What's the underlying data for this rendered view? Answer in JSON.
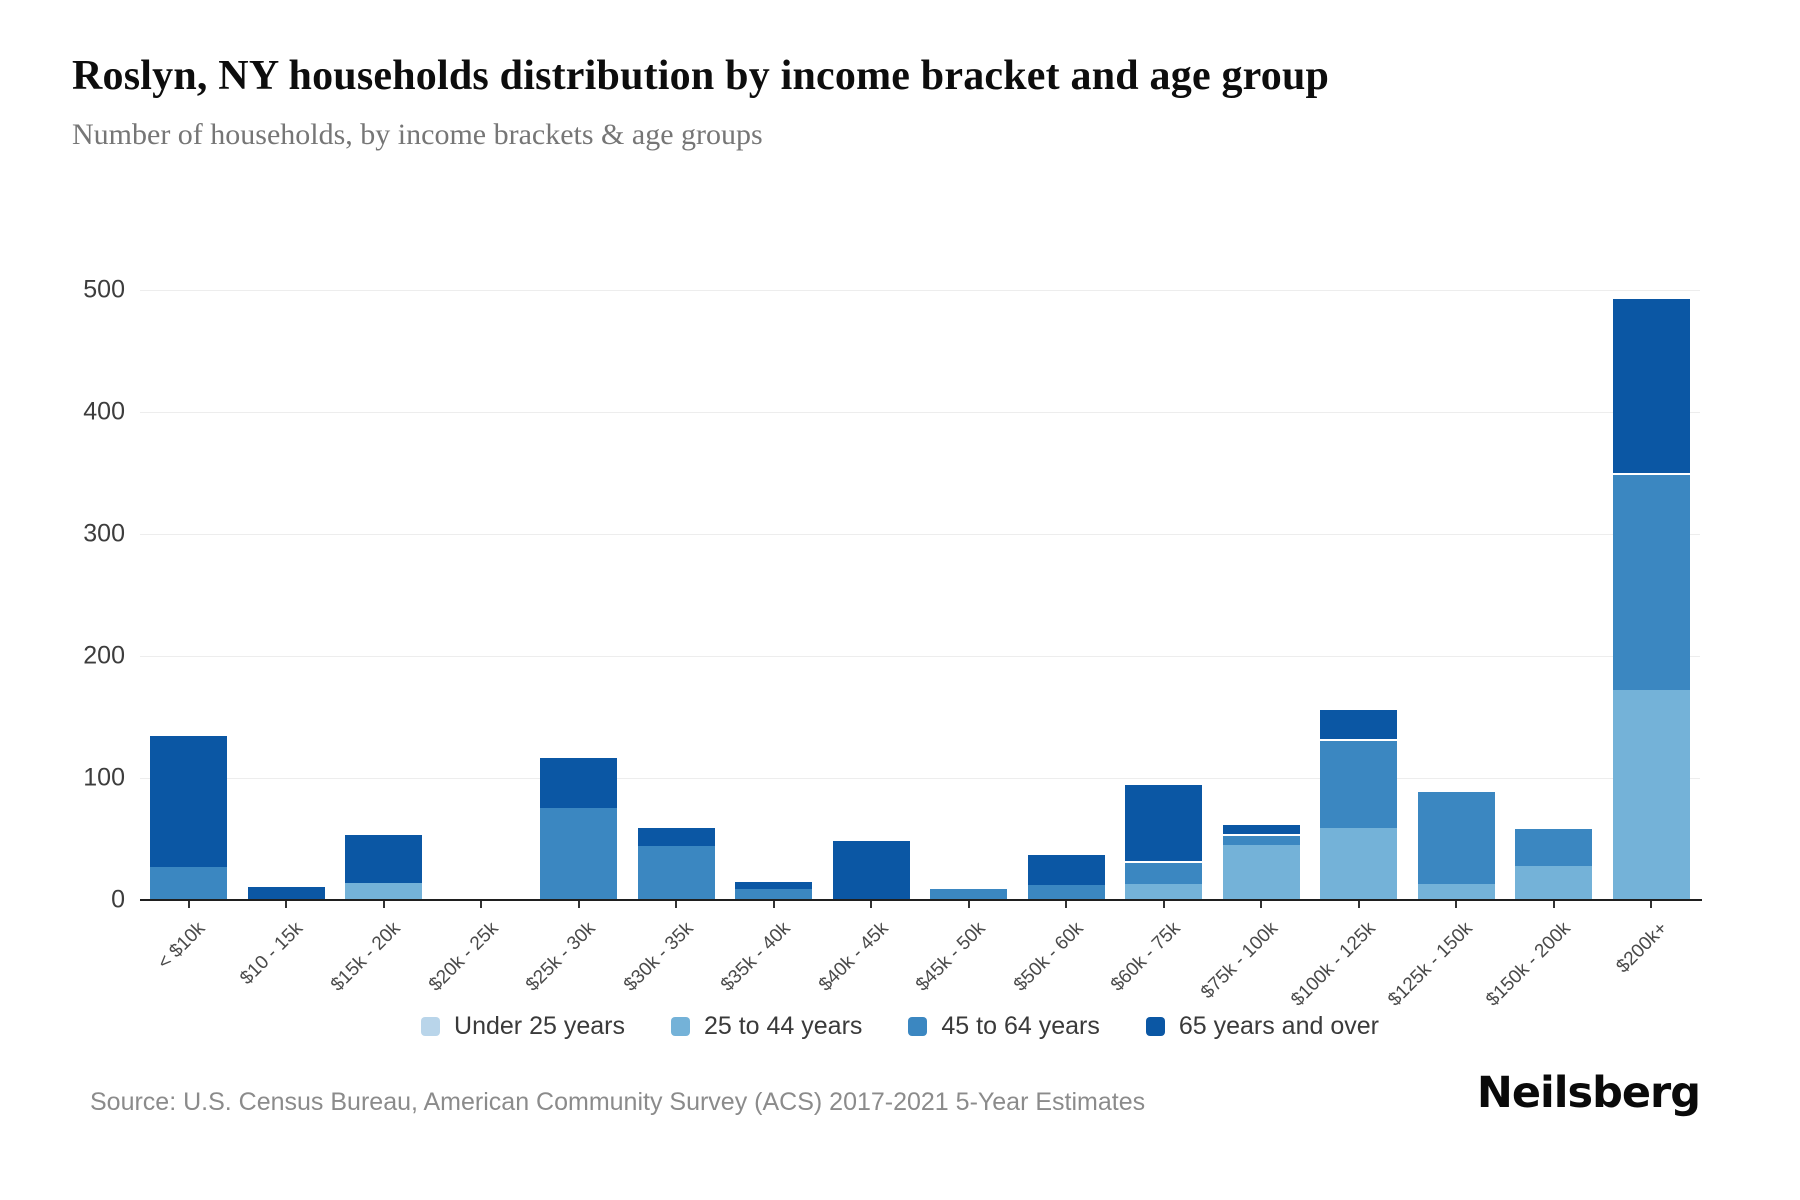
{
  "header": {
    "title": "Roslyn, NY households distribution by income bracket and age group",
    "subtitle": "Number of households, by income brackets & age groups"
  },
  "chart_data": {
    "type": "bar",
    "stacked": true,
    "title": "Roslyn, NY households distribution by income bracket and age group",
    "ylabel": "Number of households",
    "ylim": [
      0,
      500
    ],
    "yticks": [
      0,
      100,
      200,
      300,
      400,
      500
    ],
    "grid": "horizontal",
    "legend_position": "bottom",
    "categories": [
      "< $10k",
      "$10 - 15k",
      "$15k - 20k",
      "$20k - 25k",
      "$25k - 30k",
      "$30k - 35k",
      "$35k - 40k",
      "$40k - 45k",
      "$45k - 50k",
      "$50k - 60k",
      "$60k - 75k",
      "$75k - 100k",
      "$100k - 125k",
      "$125k - 150k",
      "$150k - 200k",
      "$200k+"
    ],
    "series": [
      {
        "name": "Under 25 years",
        "color": "#b9d5ea",
        "values": [
          0,
          0,
          0,
          0,
          0,
          0,
          0,
          0,
          0,
          0,
          0,
          0,
          0,
          0,
          0,
          0
        ]
      },
      {
        "name": "25 to 44 years",
        "color": "#74b2d8",
        "values": [
          0,
          0,
          14,
          0,
          0,
          0,
          0,
          0,
          0,
          0,
          13,
          45,
          59,
          13,
          28,
          172
        ]
      },
      {
        "name": "45 to 64 years",
        "color": "#3b87c1",
        "values": [
          27,
          0,
          0,
          0,
          75,
          44,
          9,
          0,
          9,
          12,
          19,
          9,
          73,
          77,
          32,
          178
        ]
      },
      {
        "name": "65 years and over",
        "color": "#0b57a4",
        "values": [
          109,
          11,
          41,
          0,
          43,
          16,
          7,
          48,
          0,
          26,
          64,
          9,
          25,
          0,
          0,
          144
        ]
      }
    ]
  },
  "footer": {
    "source": "Source: U.S. Census Bureau, American Community Survey (ACS) 2017-2021 5-Year Estimates",
    "brand": "Neilsberg"
  }
}
